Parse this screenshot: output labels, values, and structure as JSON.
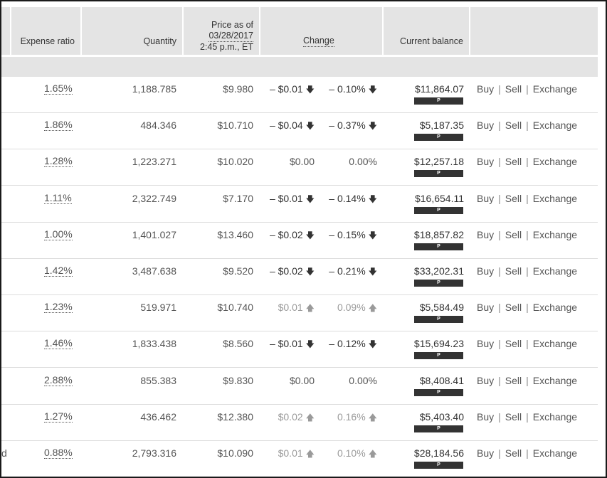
{
  "header": {
    "expense_ratio": "Expense ratio",
    "quantity": "Quantity",
    "price_line1": "Price as of",
    "price_line2": "03/28/2017",
    "price_line3": "2:45 p.m., ET",
    "change": "Change",
    "current_balance": "Current balance"
  },
  "actions": {
    "buy": "Buy",
    "sell": "Sell",
    "exchange": "Exchange",
    "separator": "|"
  },
  "badge_label": "P",
  "rows": [
    {
      "expense": "1.65%",
      "quantity": "1,188.785",
      "price": "$9.980",
      "change": "– $0.01",
      "change_dir": "down",
      "pct": "– 0.10%",
      "pct_dir": "down",
      "balance": "$11,864.07"
    },
    {
      "expense": "1.86%",
      "quantity": "484.346",
      "price": "$10.710",
      "change": "– $0.04",
      "change_dir": "down",
      "pct": "– 0.37%",
      "pct_dir": "down",
      "balance": "$5,187.35"
    },
    {
      "expense": "1.28%",
      "quantity": "1,223.271",
      "price": "$10.020",
      "change": "$0.00",
      "change_dir": "flat",
      "pct": "0.00%",
      "pct_dir": "flat",
      "balance": "$12,257.18"
    },
    {
      "expense": "1.11%",
      "quantity": "2,322.749",
      "price": "$7.170",
      "change": "– $0.01",
      "change_dir": "down",
      "pct": "– 0.14%",
      "pct_dir": "down",
      "balance": "$16,654.11"
    },
    {
      "expense": "1.00%",
      "quantity": "1,401.027",
      "price": "$13.460",
      "change": "– $0.02",
      "change_dir": "down",
      "pct": "– 0.15%",
      "pct_dir": "down",
      "balance": "$18,857.82"
    },
    {
      "expense": "1.42%",
      "quantity": "3,487.638",
      "price": "$9.520",
      "change": "– $0.02",
      "change_dir": "down",
      "pct": "– 0.21%",
      "pct_dir": "down",
      "balance": "$33,202.31"
    },
    {
      "expense": "1.23%",
      "quantity": "519.971",
      "price": "$10.740",
      "change": "$0.01",
      "change_dir": "up",
      "pct": "0.09%",
      "pct_dir": "up",
      "balance": "$5,584.49"
    },
    {
      "expense": "1.46%",
      "quantity": "1,833.438",
      "price": "$8.560",
      "change": "– $0.01",
      "change_dir": "down",
      "pct": "– 0.12%",
      "pct_dir": "down",
      "balance": "$15,694.23"
    },
    {
      "expense": "2.88%",
      "quantity": "855.383",
      "price": "$9.830",
      "change": "$0.00",
      "change_dir": "flat",
      "pct": "0.00%",
      "pct_dir": "flat",
      "balance": "$8,408.41"
    },
    {
      "expense": "1.27%",
      "quantity": "436.462",
      "price": "$12.380",
      "change": "$0.02",
      "change_dir": "up",
      "pct": "0.16%",
      "pct_dir": "up",
      "balance": "$5,403.40"
    },
    {
      "expense": "0.88%",
      "quantity": "2,793.316",
      "price": "$10.090",
      "change": "$0.01",
      "change_dir": "up",
      "pct": "0.10%",
      "pct_dir": "up",
      "balance": "$28,184.56",
      "left_fragment": "d"
    }
  ],
  "icons": {
    "down": "arrow-down-icon",
    "up": "arrow-up-icon"
  },
  "colors": {
    "header_bg": "#e4e4e4",
    "badge_bg": "#333333",
    "positive_text": "#9a9a9a",
    "negative_text": "#333333"
  }
}
